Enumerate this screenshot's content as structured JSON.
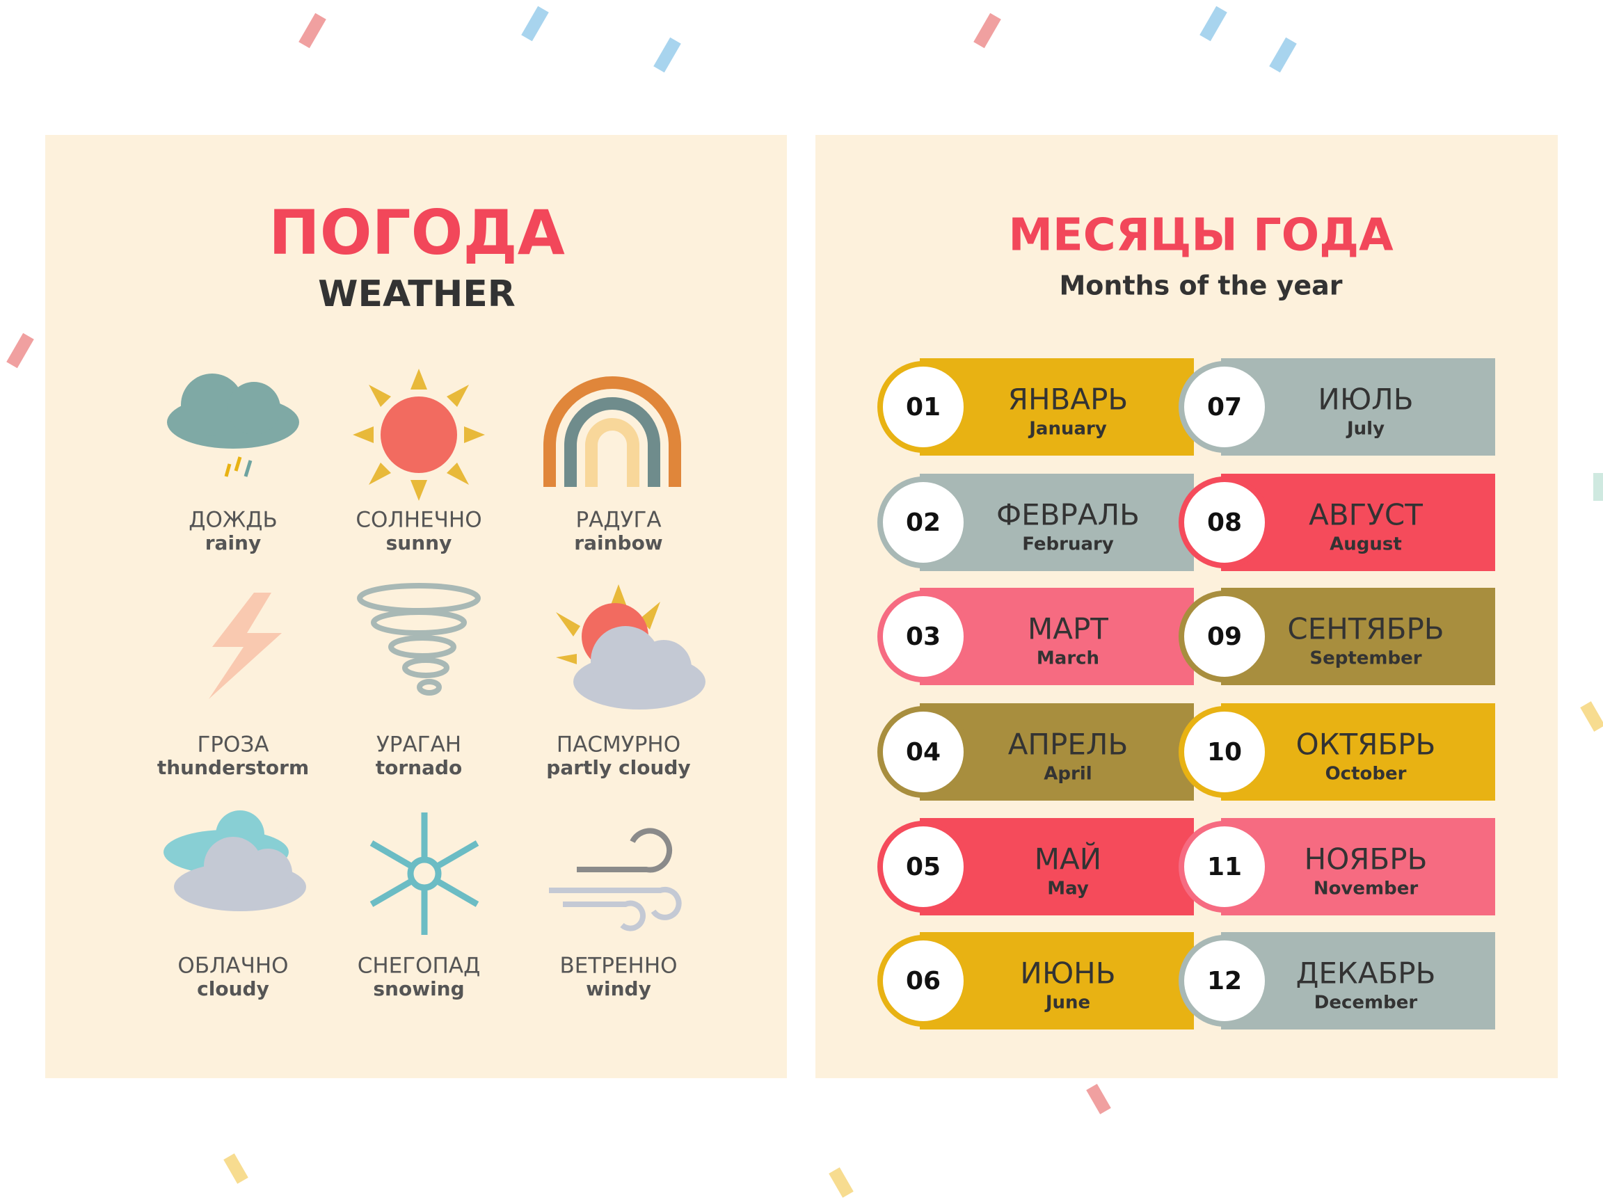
{
  "weather": {
    "title": "ПОГОДА",
    "subtitle": "WEATHER",
    "items": [
      {
        "ru": "ДОЖДЬ",
        "en": "rainy"
      },
      {
        "ru": "СОЛНЕЧНО",
        "en": "sunny"
      },
      {
        "ru": "РАДУГА",
        "en": "rainbow"
      },
      {
        "ru": "ГРОЗА",
        "en": "thunderstorm"
      },
      {
        "ru": "УРАГАН",
        "en": "tornado"
      },
      {
        "ru": "ПАСМУРНО",
        "en": "partly cloudy"
      },
      {
        "ru": "ОБЛАЧНО",
        "en": "cloudy"
      },
      {
        "ru": "СНЕГОПАД",
        "en": "snowing"
      },
      {
        "ru": "ВЕТРЕННО",
        "en": "windy"
      }
    ]
  },
  "months": {
    "title": "МЕСЯЦЫ ГОДА",
    "subtitle": "Months of the year",
    "items": [
      {
        "number": "01",
        "ru": "ЯНВАРЬ",
        "en": "January"
      },
      {
        "number": "02",
        "ru": "ФЕВРАЛЬ",
        "en": "February"
      },
      {
        "number": "03",
        "ru": "МАРТ",
        "en": "March"
      },
      {
        "number": "04",
        "ru": "АПРЕЛЬ",
        "en": "April"
      },
      {
        "number": "05",
        "ru": "МАЙ",
        "en": "May"
      },
      {
        "number": "06",
        "ru": "ИЮНЬ",
        "en": "June"
      },
      {
        "number": "07",
        "ru": "ИЮЛЬ",
        "en": "July"
      },
      {
        "number": "08",
        "ru": "АВГУСТ",
        "en": "August"
      },
      {
        "number": "09",
        "ru": "СЕНТЯБРЬ",
        "en": "September"
      },
      {
        "number": "10",
        "ru": "ОКТЯБРЬ",
        "en": "October"
      },
      {
        "number": "11",
        "ru": "НОЯБРЬ",
        "en": "November"
      },
      {
        "number": "12",
        "ru": "ДЕКАБРЬ",
        "en": "December"
      }
    ]
  }
}
